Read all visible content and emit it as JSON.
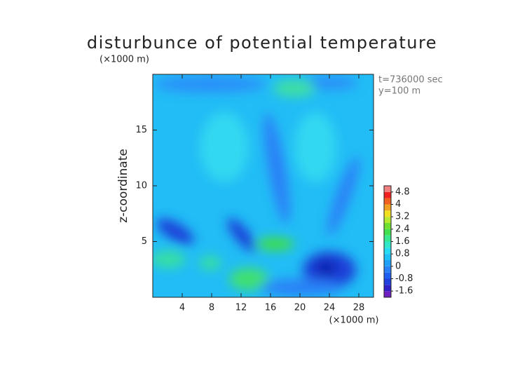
{
  "chart_data": {
    "type": "contour",
    "title": "disturbunce of potential temperature",
    "x_unit": "(×1000 m)",
    "y_unit": "(×1000 m)",
    "ylabel": "z-coordinate",
    "annotations": [
      "t=736000 sec",
      "y=100 m"
    ],
    "xlim": [
      0,
      30
    ],
    "ylim": [
      0,
      20
    ],
    "xticks": [
      4,
      8,
      12,
      16,
      20,
      24,
      28
    ],
    "yticks": [
      5,
      10,
      15
    ],
    "colorbar": {
      "lim": [
        -2,
        5.2
      ],
      "ticks": [
        4.8,
        4,
        3.2,
        2.4,
        1.6,
        0.8,
        0,
        -0.8,
        -1.6
      ],
      "colors": [
        "#7020c0",
        "#3020c8",
        "#2040e0",
        "#2060f0",
        "#2a80f6",
        "#20a0f8",
        "#20c0f8",
        "#28dcf4",
        "#30e8c8",
        "#38e890",
        "#40e050",
        "#70e030",
        "#b8e830",
        "#f0e020",
        "#f0a020",
        "#f06020",
        "#f02020",
        "#f08080"
      ]
    }
  }
}
